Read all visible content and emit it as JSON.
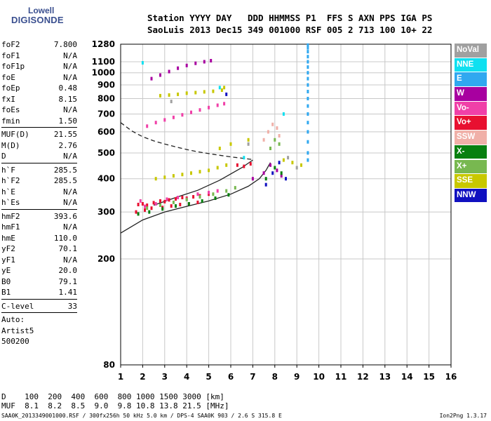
{
  "logo": {
    "line1": "Lowell",
    "line2": "DIGISONDE"
  },
  "header": {
    "line1": "Station YYYY DAY   DDD HHMMSS P1  FFS S AXN PPS IGA PS",
    "line2": "SaoLuis 2013 Dec15 349 001000 RSF 005 2 713 100 10+ 22"
  },
  "params": {
    "group1": [
      {
        "label": "foF2",
        "value": "7.800"
      },
      {
        "label": "foF1",
        "value": "N/A"
      },
      {
        "label": "foF1p",
        "value": "N/A"
      },
      {
        "label": "foE",
        "value": "N/A"
      },
      {
        "label": "foEp",
        "value": "0.48"
      },
      {
        "label": "fxI",
        "value": "8.15"
      },
      {
        "label": "foEs",
        "value": "N/A"
      },
      {
        "label": "fmin",
        "value": "1.50"
      }
    ],
    "group2": [
      {
        "label": "MUF(D)",
        "value": "21.55"
      },
      {
        "label": "M(D)",
        "value": "2.76"
      },
      {
        "label": "D",
        "value": "N/A"
      }
    ],
    "group3": [
      {
        "label": "h`F",
        "value": "285.5"
      },
      {
        "label": "h`F2",
        "value": "285.5"
      },
      {
        "label": "h`E",
        "value": "N/A"
      },
      {
        "label": "h`Es",
        "value": "N/A"
      }
    ],
    "group4": [
      {
        "label": "hmF2",
        "value": "393.6"
      },
      {
        "label": "hmF1",
        "value": "N/A"
      },
      {
        "label": "hmE",
        "value": "110.0"
      },
      {
        "label": "yF2",
        "value": "70.1"
      },
      {
        "label": "yF1",
        "value": "N/A"
      },
      {
        "label": "yE",
        "value": "20.0"
      },
      {
        "label": "B0",
        "value": "79.1"
      },
      {
        "label": "B1",
        "value": "1.41"
      }
    ],
    "group5": [
      {
        "label": "C-level",
        "value": "33"
      }
    ],
    "auto": [
      "Auto:",
      "Artist5",
      "500200"
    ]
  },
  "legend": [
    {
      "label": "NoVal",
      "color": "#a0a0a0"
    },
    {
      "label": "NNE",
      "color": "#10e0f0"
    },
    {
      "label": "E",
      "color": "#30a8f0"
    },
    {
      "label": "W",
      "color": "#a800a0"
    },
    {
      "label": "Vo-",
      "color": "#f040a8"
    },
    {
      "label": "Vo+",
      "color": "#e81030"
    },
    {
      "label": "SSW",
      "color": "#f0b0a8"
    },
    {
      "label": "X-",
      "color": "#088010"
    },
    {
      "label": "X+",
      "color": "#78b850"
    },
    {
      "label": "SSE",
      "color": "#c8c800"
    },
    {
      "label": "NNW",
      "color": "#1010c0"
    }
  ],
  "bottom": {
    "line1": "D    100  200  400  600  800 1000 1500 3000 [km]",
    "line2": "MUF  8.1  8.2  8.5  9.0  9.8 10.8 13.8 21.5 [MHz]"
  },
  "footer": "SAA0K_2013349001000.RSF / 300fx256h 50 kHz 5.0 km / DPS-4 SAA0K 903 / 2.6 S 315.8 E",
  "version": "Ion2Png 1.3.17",
  "chart_data": {
    "type": "scatter",
    "title": "",
    "xlabel": "",
    "ylabel": "",
    "xlim": [
      1,
      16
    ],
    "ylim": [
      80,
      1280
    ],
    "y_scale": "log",
    "x_ticks": [
      1,
      2,
      3,
      4,
      5,
      6,
      7,
      8,
      9,
      10,
      11,
      12,
      13,
      14,
      15,
      16
    ],
    "y_ticks": [
      80,
      200,
      300,
      400,
      500,
      600,
      700,
      800,
      900,
      1000,
      1100,
      1280
    ],
    "grid": true,
    "legend_position": "right",
    "series": [
      {
        "name": "Vo+",
        "color": "#e81030",
        "x": [
          1.8,
          2.0,
          2.2,
          2.5,
          2.8,
          3.0,
          3.2,
          3.5,
          3.8,
          4.0,
          4.3,
          4.6,
          5.0,
          6.3,
          6.6,
          6.9,
          1.7,
          2.1,
          2.4,
          2.9,
          3.3,
          3.7,
          4.1,
          4.5
        ],
        "y": [
          320,
          322,
          318,
          325,
          330,
          328,
          333,
          336,
          340,
          338,
          342,
          345,
          350,
          450,
          445,
          455,
          300,
          305,
          310,
          312,
          316,
          320,
          322,
          326
        ]
      },
      {
        "name": "Vo-",
        "color": "#f040a8",
        "x": [
          1.9,
          2.1,
          2.6,
          3.1,
          3.6,
          4.0,
          4.5,
          5.0,
          5.4,
          2.2,
          2.6,
          3.0,
          3.4,
          3.8,
          4.2,
          4.6,
          5.0,
          5.4,
          5.7
        ],
        "y": [
          330,
          315,
          322,
          335,
          340,
          335,
          350,
          355,
          360,
          630,
          650,
          665,
          680,
          695,
          710,
          725,
          740,
          755,
          765
        ]
      },
      {
        "name": "W",
        "color": "#a800a0",
        "x": [
          2.4,
          2.8,
          3.2,
          3.6,
          4.0,
          4.4,
          4.8,
          5.1,
          7.0,
          7.5,
          7.8,
          8.1,
          8.3
        ],
        "y": [
          950,
          980,
          1010,
          1040,
          1065,
          1085,
          1100,
          1110,
          400,
          420,
          450,
          430,
          410
        ]
      },
      {
        "name": "X+",
        "color": "#78b850",
        "x": [
          2.2,
          2.8,
          3.4,
          4.0,
          4.6,
          5.2,
          5.8,
          6.2,
          7.8,
          8.0,
          8.2
        ],
        "y": [
          310,
          318,
          326,
          334,
          342,
          350,
          360,
          370,
          520,
          560,
          540
        ]
      },
      {
        "name": "X-",
        "color": "#088010",
        "x": [
          1.8,
          2.3,
          2.9,
          3.5,
          4.1,
          4.7,
          5.3,
          5.9,
          7.6,
          8.0,
          8.3
        ],
        "y": [
          295,
          300,
          308,
          316,
          322,
          330,
          338,
          348,
          400,
          440,
          420
        ]
      },
      {
        "name": "SSE",
        "color": "#c8c800",
        "x": [
          2.6,
          3.0,
          3.4,
          3.8,
          4.2,
          4.6,
          5.0,
          5.4,
          5.8,
          2.8,
          3.2,
          3.6,
          4.0,
          4.4,
          4.8,
          5.2,
          5.6,
          5.7,
          5.5,
          6.0,
          6.8,
          8.4,
          8.8,
          9.2
        ],
        "y": [
          400,
          405,
          410,
          415,
          420,
          425,
          430,
          440,
          450,
          820,
          825,
          830,
          838,
          842,
          848,
          852,
          860,
          880,
          520,
          540,
          560,
          470,
          460,
          450
        ]
      },
      {
        "name": "SSW",
        "color": "#f0b0a8",
        "x": [
          7.5,
          7.7,
          7.9,
          8.1,
          8.2
        ],
        "y": [
          560,
          600,
          640,
          620,
          580
        ]
      },
      {
        "name": "NNE",
        "color": "#10e0f0",
        "x": [
          2.0,
          5.5,
          6.6,
          8.4
        ],
        "y": [
          1090,
          880,
          480,
          700
        ]
      },
      {
        "name": "E",
        "color": "#30a8f0",
        "x": [
          9.5,
          9.5,
          9.5,
          9.5,
          9.5,
          9.5,
          9.5,
          9.5,
          9.5,
          9.5,
          9.5,
          9.5,
          9.5,
          9.5,
          9.5,
          9.5,
          9.5,
          9.5
        ],
        "y": [
          1270,
          1240,
          1200,
          1150,
          1100,
          1050,
          1000,
          950,
          900,
          850,
          800,
          750,
          700,
          650,
          600,
          550,
          500,
          470
        ]
      },
      {
        "name": "NNW",
        "color": "#1010c0",
        "x": [
          5.8,
          7.6,
          7.9,
          8.2,
          8.5
        ],
        "y": [
          830,
          380,
          420,
          460,
          400
        ]
      },
      {
        "name": "NoVal",
        "color": "#a0a0a0",
        "x": [
          3.3,
          6.8,
          8.6,
          9.0
        ],
        "y": [
          780,
          540,
          480,
          440
        ]
      }
    ],
    "lines": [
      {
        "name": "profile",
        "style": "solid",
        "x": [
          1.0,
          2.0,
          3.0,
          4.0,
          5.0,
          6.0,
          6.8,
          7.3,
          7.6,
          7.8
        ],
        "y": [
          250,
          280,
          300,
          315,
          330,
          350,
          375,
          400,
          430,
          460
        ]
      },
      {
        "name": "profile-upper",
        "style": "solid",
        "x": [
          2.5,
          3.5,
          4.5,
          5.5,
          6.5,
          7.0
        ],
        "y": [
          318,
          340,
          362,
          395,
          440,
          470
        ]
      },
      {
        "name": "extrapolation",
        "style": "dashed",
        "x": [
          1.0,
          1.5,
          2.0,
          2.5,
          3.0,
          3.5,
          4.0,
          4.5,
          5.0,
          5.5,
          6.0,
          6.5,
          7.0
        ],
        "y": [
          650,
          605,
          575,
          555,
          540,
          527,
          515,
          505,
          497,
          490,
          483,
          478,
          472
        ]
      }
    ]
  }
}
